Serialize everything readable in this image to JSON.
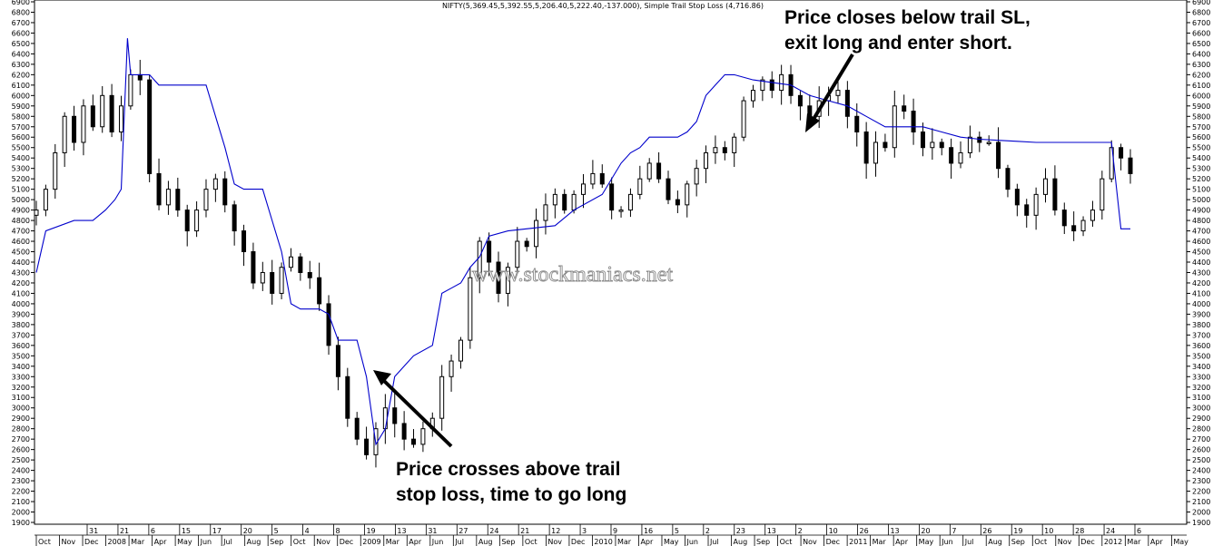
{
  "header": "NIFTY(5,369.45,5,392.55,5,206.40,5,222.40,-137.000), Simple Trail Stop Loss (4,716.86)",
  "watermark": "www.stockmaniacs.net",
  "annotations": [
    {
      "lines": [
        "Price closes below trail SL,",
        "exit long and enter short."
      ]
    },
    {
      "lines": [
        "Price crosses above trail",
        "stop loss, time to go long"
      ]
    }
  ],
  "chart_data": {
    "type": "candlestick",
    "title": "NIFTY(5,369.45,5,392.55,5,206.40,5,222.40,-137.000), Simple Trail Stop Loss (4,716.86)",
    "ylim": [
      1900,
      6900
    ],
    "yticks": [
      1900,
      2000,
      2100,
      2200,
      2300,
      2400,
      2500,
      2600,
      2700,
      2800,
      2900,
      3000,
      3100,
      3200,
      3300,
      3400,
      3500,
      3600,
      3700,
      3800,
      3900,
      4000,
      4100,
      4200,
      4300,
      4400,
      4500,
      4600,
      4700,
      4800,
      4900,
      5000,
      5100,
      5200,
      5300,
      5400,
      5500,
      5600,
      5700,
      5800,
      5900,
      6000,
      6100,
      6200,
      6300,
      6400,
      6500,
      6600,
      6700,
      6800,
      6900
    ],
    "x_bottom_labels": [
      "Oct",
      "Nov",
      "Dec",
      "2008",
      "Mar",
      "Apr",
      "May",
      "Jun",
      "Jul",
      "Aug",
      "Sep",
      "Oct",
      "Nov",
      "Dec",
      "2009",
      "Mar",
      "Apr",
      "Jun",
      "Jul",
      "Aug",
      "Sep",
      "Oct",
      "Nov",
      "Dec",
      "2010",
      "Mar",
      "Apr",
      "May",
      "Jun",
      "Jul",
      "Aug",
      "Sep",
      "Oct",
      "Nov",
      "Dec",
      "2011",
      "Mar",
      "Apr",
      "May",
      "Jun",
      "Jul",
      "Aug",
      "Sep",
      "Oct",
      "Nov",
      "Dec",
      "2012",
      "Mar",
      "Apr",
      "May"
    ],
    "x_top_labels": [
      "31",
      "21",
      "6",
      "15",
      "17",
      "20",
      "5",
      "4",
      "8",
      "19",
      "13",
      "31",
      "27",
      "24",
      "21",
      "12",
      "3",
      "9",
      "16",
      "5",
      "2",
      "23",
      "13",
      "2",
      "10",
      "26",
      "13",
      "20",
      "7",
      "26",
      "19",
      "10",
      "28",
      "24",
      "6"
    ],
    "series": [
      {
        "name": "NIFTY",
        "kind": "price",
        "points": [
          [
            0,
            4900
          ],
          [
            3,
            5100
          ],
          [
            6,
            5450
          ],
          [
            9,
            5800
          ],
          [
            12,
            5550
          ],
          [
            15,
            5900
          ],
          [
            18,
            5700
          ],
          [
            21,
            6000
          ],
          [
            24,
            5650
          ],
          [
            27,
            5900
          ],
          [
            30,
            6200
          ],
          [
            33,
            6150
          ],
          [
            36,
            5250
          ],
          [
            39,
            4950
          ],
          [
            42,
            5100
          ],
          [
            45,
            4900
          ],
          [
            48,
            4700
          ],
          [
            51,
            4900
          ],
          [
            54,
            5100
          ],
          [
            57,
            5200
          ],
          [
            60,
            4950
          ],
          [
            63,
            4700
          ],
          [
            66,
            4500
          ],
          [
            69,
            4200
          ],
          [
            72,
            4300
          ],
          [
            75,
            4100
          ],
          [
            78,
            4350
          ],
          [
            81,
            4450
          ],
          [
            84,
            4300
          ],
          [
            87,
            4250
          ],
          [
            90,
            4000
          ],
          [
            93,
            3600
          ],
          [
            96,
            3300
          ],
          [
            99,
            2900
          ],
          [
            102,
            2700
          ],
          [
            105,
            2550
          ],
          [
            108,
            2800
          ],
          [
            111,
            3000
          ],
          [
            114,
            2850
          ],
          [
            117,
            2700
          ],
          [
            120,
            2650
          ],
          [
            123,
            2800
          ],
          [
            126,
            2900
          ],
          [
            129,
            3300
          ],
          [
            132,
            3450
          ],
          [
            135,
            3650
          ],
          [
            138,
            4250
          ],
          [
            141,
            4600
          ],
          [
            144,
            4400
          ],
          [
            147,
            4100
          ],
          [
            150,
            4350
          ],
          [
            153,
            4600
          ],
          [
            156,
            4550
          ],
          [
            159,
            4800
          ],
          [
            162,
            4950
          ],
          [
            165,
            5050
          ],
          [
            168,
            4900
          ],
          [
            171,
            5050
          ],
          [
            174,
            5150
          ],
          [
            177,
            5250
          ],
          [
            180,
            5150
          ],
          [
            183,
            4900
          ],
          [
            186,
            4900
          ],
          [
            189,
            5050
          ],
          [
            192,
            5200
          ],
          [
            195,
            5350
          ],
          [
            198,
            5200
          ],
          [
            201,
            5000
          ],
          [
            204,
            4950
          ],
          [
            207,
            5150
          ],
          [
            210,
            5300
          ],
          [
            213,
            5450
          ],
          [
            216,
            5500
          ],
          [
            219,
            5450
          ],
          [
            222,
            5600
          ],
          [
            225,
            5950
          ],
          [
            228,
            6050
          ],
          [
            231,
            6150
          ],
          [
            234,
            6050
          ],
          [
            237,
            6200
          ],
          [
            240,
            6000
          ],
          [
            243,
            5900
          ],
          [
            246,
            5800
          ],
          [
            249,
            5950
          ],
          [
            252,
            6000
          ],
          [
            255,
            6050
          ],
          [
            258,
            5800
          ],
          [
            261,
            5650
          ],
          [
            264,
            5350
          ],
          [
            267,
            5550
          ],
          [
            270,
            5500
          ],
          [
            273,
            5900
          ],
          [
            276,
            5850
          ],
          [
            279,
            5650
          ],
          [
            282,
            5500
          ],
          [
            285,
            5550
          ],
          [
            288,
            5500
          ],
          [
            291,
            5350
          ],
          [
            294,
            5450
          ],
          [
            297,
            5600
          ],
          [
            300,
            5550
          ],
          [
            303,
            5550
          ],
          [
            306,
            5300
          ],
          [
            309,
            5100
          ],
          [
            312,
            4950
          ],
          [
            315,
            4850
          ],
          [
            318,
            5050
          ],
          [
            321,
            5200
          ],
          [
            324,
            4900
          ],
          [
            327,
            4750
          ],
          [
            330,
            4700
          ],
          [
            333,
            4800
          ],
          [
            336,
            4900
          ],
          [
            339,
            5200
          ],
          [
            342,
            5500
          ],
          [
            345,
            5400
          ],
          [
            348,
            5250
          ]
        ]
      },
      {
        "name": "Simple Trail Stop Loss",
        "kind": "trail",
        "points": [
          [
            0,
            4300
          ],
          [
            3,
            4700
          ],
          [
            12,
            4800
          ],
          [
            18,
            4800
          ],
          [
            22,
            4900
          ],
          [
            25,
            5000
          ],
          [
            27,
            5100
          ],
          [
            29,
            6550
          ],
          [
            30,
            6200
          ],
          [
            36,
            6200
          ],
          [
            39,
            6100
          ],
          [
            54,
            6100
          ],
          [
            57,
            5800
          ],
          [
            60,
            5500
          ],
          [
            63,
            5150
          ],
          [
            66,
            5100
          ],
          [
            69,
            5100
          ],
          [
            72,
            5100
          ],
          [
            75,
            4800
          ],
          [
            78,
            4500
          ],
          [
            81,
            4000
          ],
          [
            84,
            3950
          ],
          [
            90,
            3950
          ],
          [
            93,
            3900
          ],
          [
            96,
            3650
          ],
          [
            102,
            3650
          ],
          [
            105,
            3300
          ],
          [
            108,
            2650
          ],
          [
            111,
            2800
          ],
          [
            114,
            3300
          ],
          [
            117,
            3400
          ],
          [
            120,
            3500
          ],
          [
            126,
            3600
          ],
          [
            129,
            4100
          ],
          [
            132,
            4150
          ],
          [
            135,
            4200
          ],
          [
            138,
            4350
          ],
          [
            141,
            4450
          ],
          [
            144,
            4650
          ],
          [
            150,
            4700
          ],
          [
            165,
            4750
          ],
          [
            171,
            4900
          ],
          [
            180,
            5050
          ],
          [
            186,
            5350
          ],
          [
            189,
            5450
          ],
          [
            192,
            5500
          ],
          [
            195,
            5600
          ],
          [
            198,
            5600
          ],
          [
            204,
            5600
          ],
          [
            207,
            5650
          ],
          [
            210,
            5750
          ],
          [
            213,
            6000
          ],
          [
            216,
            6100
          ],
          [
            219,
            6200
          ],
          [
            222,
            6200
          ],
          [
            228,
            6150
          ],
          [
            240,
            6100
          ],
          [
            246,
            6000
          ],
          [
            252,
            5950
          ],
          [
            258,
            5900
          ],
          [
            264,
            5800
          ],
          [
            270,
            5700
          ],
          [
            276,
            5700
          ],
          [
            282,
            5700
          ],
          [
            288,
            5650
          ],
          [
            294,
            5600
          ],
          [
            300,
            5580
          ],
          [
            306,
            5570
          ],
          [
            312,
            5560
          ],
          [
            318,
            5550
          ],
          [
            324,
            5550
          ],
          [
            330,
            5550
          ],
          [
            336,
            5550
          ],
          [
            342,
            5550
          ],
          [
            345,
            4720
          ],
          [
            348,
            4720
          ]
        ]
      }
    ],
    "annotations_data": [
      {
        "text": "Price closes below trail SL, exit long and enter short."
      },
      {
        "text": "Price crosses above trail stop loss, time to go long"
      }
    ]
  }
}
